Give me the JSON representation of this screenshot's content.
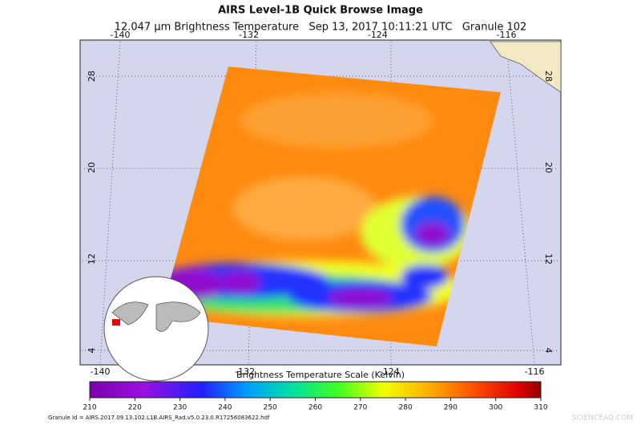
{
  "title": "AIRS Level-1B Quick Browse Image",
  "subtitle": "12.047 μm Brightness Temperature   Sep 13, 2017 10:11:21 UTC   Granule 102",
  "map": {
    "lon_ticks": [
      -140,
      -132,
      -124,
      -116
    ],
    "lat_ticks": [
      28,
      20,
      12,
      4
    ]
  },
  "colorbar": {
    "title": "Brightness Temperature Scale (Kelvin)",
    "range": [
      210,
      310
    ],
    "ticks": [
      210,
      220,
      230,
      240,
      250,
      260,
      270,
      280,
      290,
      300,
      310
    ]
  },
  "granule_id": "Granule Id = AIRS.2017.09.13.102.L1B.AIRS_Rad.v5.0.23.0.R17256083622.hdf",
  "watermark": "SCIENCEAQ.COM"
}
